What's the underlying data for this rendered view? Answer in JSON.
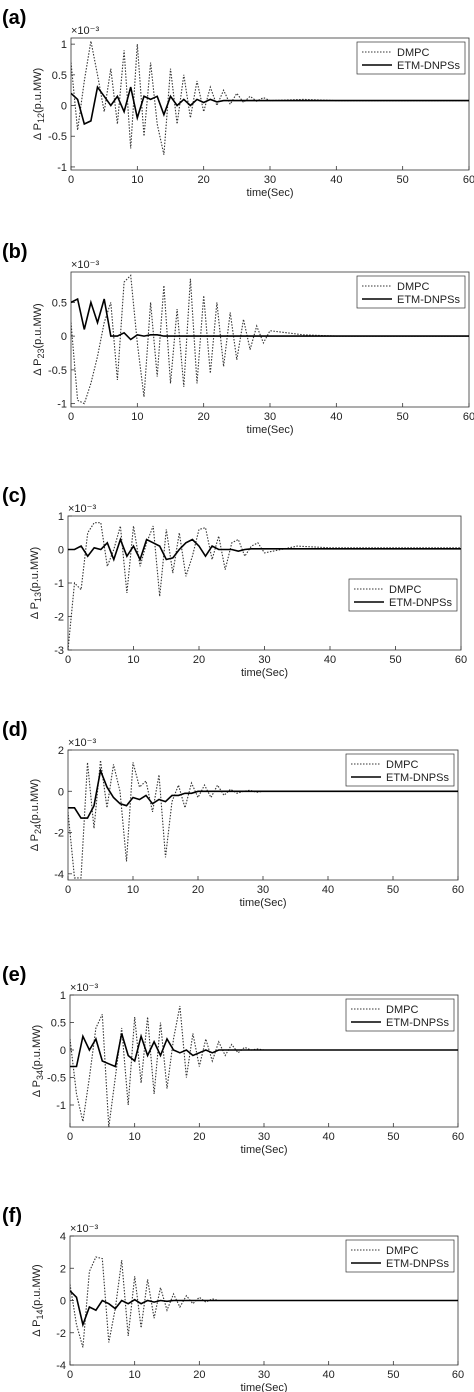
{
  "chart_data": [
    {
      "type": "line",
      "panel_label": "(a)",
      "ylabel": "Δ P",
      "ylabel_sub": "12",
      "ylabel_unit": "(p.u.MW)",
      "y_multiplier": "×10⁻³",
      "xlabel": "time(Sec)",
      "x": [
        0,
        1,
        2,
        3,
        4,
        5,
        6,
        7,
        8,
        9,
        10,
        11,
        12,
        13,
        14,
        15,
        16,
        17,
        18,
        19,
        20,
        21,
        22,
        23,
        24,
        25,
        26,
        27,
        28,
        29,
        30,
        35,
        40,
        50,
        60
      ],
      "xlim": [
        0,
        60
      ],
      "xticks": [
        0,
        10,
        20,
        30,
        40,
        50,
        60
      ],
      "ylim": [
        -1.05,
        1.1
      ],
      "yticks": [
        -1,
        -0.5,
        0,
        0.5,
        1
      ],
      "legend": "upper right",
      "series": [
        {
          "name": "DMPC",
          "color": "#333333",
          "style": "dotted",
          "values": [
            0.7,
            -0.4,
            0.4,
            1.05,
            0.5,
            -0.1,
            0.6,
            -0.3,
            0.9,
            -0.7,
            1.0,
            -0.5,
            0.7,
            -0.3,
            -0.8,
            0.6,
            -0.3,
            0.5,
            -0.2,
            0.4,
            -0.1,
            0.3,
            0,
            0.25,
            0.02,
            0.2,
            0.05,
            0.15,
            0.07,
            0.13,
            0.08,
            0.1,
            0.08,
            0.08,
            0.08
          ]
        },
        {
          "name": "ETM-DNPSs",
          "color": "#000000",
          "style": "solid",
          "values": [
            0.2,
            0.1,
            -0.3,
            -0.25,
            0.3,
            0.15,
            0,
            0.15,
            -0.1,
            0.3,
            -0.2,
            0.15,
            0.1,
            0.15,
            -0.15,
            0.15,
            0,
            0.1,
            0,
            0.1,
            0.05,
            0.1,
            0.06,
            0.08,
            0.08,
            0.08,
            0.08,
            0.08,
            0.08,
            0.08,
            0.08,
            0.08,
            0.08,
            0.08,
            0.08
          ]
        }
      ]
    },
    {
      "type": "line",
      "panel_label": "(b)",
      "ylabel": "Δ P",
      "ylabel_sub": "23",
      "ylabel_unit": "(p.u.MW)",
      "y_multiplier": "×10⁻³",
      "xlabel": "time(Sec)",
      "x": [
        0,
        1,
        2,
        3,
        4,
        5,
        6,
        7,
        8,
        9,
        10,
        11,
        12,
        13,
        14,
        15,
        16,
        17,
        18,
        19,
        20,
        21,
        22,
        23,
        24,
        25,
        26,
        27,
        28,
        29,
        30,
        35,
        40,
        50,
        60
      ],
      "xlim": [
        0,
        60
      ],
      "xticks": [
        0,
        10,
        20,
        30,
        40,
        50,
        60
      ],
      "ylim": [
        -1.05,
        0.95
      ],
      "yticks": [
        -1,
        -0.5,
        0,
        0.5
      ],
      "legend": "upper right",
      "series": [
        {
          "name": "DMPC",
          "color": "#333333",
          "style": "dotted",
          "values": [
            0.2,
            -0.95,
            -1.0,
            -0.7,
            -0.3,
            0.2,
            0.5,
            -0.65,
            0.8,
            0.9,
            -0.1,
            -0.9,
            0.5,
            -0.6,
            0.75,
            -0.7,
            0.4,
            -0.75,
            0.85,
            -0.7,
            0.6,
            -0.55,
            0.5,
            -0.45,
            0.35,
            -0.35,
            0.25,
            -0.2,
            0.15,
            -0.1,
            0.08,
            0.02,
            0,
            0,
            0
          ]
        },
        {
          "name": "ETM-DNPSs",
          "color": "#000000",
          "style": "solid",
          "values": [
            0.5,
            0.55,
            0.1,
            0.5,
            0.2,
            0.55,
            0,
            0,
            0.05,
            -0.05,
            0.02,
            0,
            0.02,
            0.02,
            0,
            0,
            0,
            0,
            0,
            0,
            0,
            0,
            0,
            0,
            0,
            0,
            0,
            0,
            0,
            0,
            0,
            0,
            0,
            0,
            0
          ]
        }
      ]
    },
    {
      "type": "line",
      "panel_label": "(c)",
      "ylabel": "Δ P",
      "ylabel_sub": "13",
      "ylabel_unit": "(p.u.MW)",
      "y_multiplier": "×10⁻³",
      "xlabel": "time(Sec)",
      "x": [
        0,
        1,
        2,
        3,
        4,
        5,
        6,
        7,
        8,
        9,
        10,
        11,
        12,
        13,
        14,
        15,
        16,
        17,
        18,
        19,
        20,
        21,
        22,
        23,
        24,
        25,
        26,
        27,
        28,
        29,
        30,
        35,
        40,
        50,
        60
      ],
      "xlim": [
        0,
        60
      ],
      "xticks": [
        0,
        10,
        20,
        30,
        40,
        50,
        60
      ],
      "ylim": [
        -3,
        1
      ],
      "yticks": [
        -3,
        -2,
        -1,
        0,
        1
      ],
      "legend": "center right",
      "series": [
        {
          "name": "DMPC",
          "color": "#333333",
          "style": "dotted",
          "values": [
            -3,
            -1,
            -1.2,
            0.5,
            0.8,
            0.8,
            -0.5,
            0,
            0.7,
            -1.3,
            0.7,
            -0.5,
            0.2,
            0.7,
            -1.4,
            0.6,
            -0.7,
            0.5,
            -0.8,
            -0.2,
            0.6,
            0.65,
            -0.3,
            0.4,
            -0.6,
            0.2,
            0.3,
            -0.2,
            0.1,
            0.2,
            -0.1,
            0.1,
            0.05,
            0.05,
            0.05
          ]
        },
        {
          "name": "ETM-DNPSs",
          "color": "#000000",
          "style": "solid",
          "values": [
            0,
            0,
            0.1,
            -0.2,
            0.05,
            0,
            0.2,
            -0.3,
            0.3,
            -0.2,
            0.1,
            -0.3,
            0.3,
            0.2,
            0.1,
            -0.3,
            -0.25,
            0,
            0.2,
            0.3,
            0.1,
            -0.2,
            0.1,
            0,
            0,
            0,
            -0.05,
            0,
            0.02,
            0.02,
            0.02,
            0.02,
            0.02,
            0.02,
            0.02
          ]
        }
      ]
    },
    {
      "type": "line",
      "panel_label": "(d)",
      "ylabel": "Δ P",
      "ylabel_sub": "24",
      "ylabel_unit": "(p.u.MW)",
      "y_multiplier": "×10⁻³",
      "xlabel": "time(Sec)",
      "x": [
        0,
        1,
        2,
        3,
        4,
        5,
        6,
        7,
        8,
        9,
        10,
        11,
        12,
        13,
        14,
        15,
        16,
        17,
        18,
        19,
        20,
        21,
        22,
        23,
        24,
        25,
        26,
        27,
        28,
        29,
        30,
        35,
        40,
        50,
        60
      ],
      "xlim": [
        0,
        60
      ],
      "xticks": [
        0,
        10,
        20,
        30,
        40,
        50,
        60
      ],
      "ylim": [
        -4.3,
        2
      ],
      "yticks": [
        -4,
        -2,
        0,
        2
      ],
      "legend": "upper right",
      "series": [
        {
          "name": "DMPC",
          "color": "#333333",
          "style": "dotted",
          "values": [
            -1,
            -4.2,
            -4.2,
            1.4,
            -1.8,
            1.5,
            -0.8,
            1.3,
            0,
            -3.4,
            1.4,
            0.2,
            0.5,
            -1,
            0.8,
            -3.2,
            -0.5,
            0.3,
            -0.8,
            0.4,
            -0.3,
            0.3,
            -0.3,
            0.3,
            -0.2,
            0.1,
            -0.1,
            0,
            0.05,
            -0.05,
            0,
            0,
            0,
            0,
            0
          ]
        },
        {
          "name": "ETM-DNPSs",
          "color": "#000000",
          "style": "solid",
          "values": [
            -0.8,
            -0.8,
            -1.3,
            -1.3,
            -0.7,
            1.0,
            0.2,
            -0.3,
            -0.6,
            -0.7,
            -0.3,
            -0.4,
            -0.2,
            -0.6,
            -0.4,
            -0.5,
            -0.2,
            -0.2,
            -0.1,
            -0.1,
            0,
            0,
            0,
            0,
            0,
            0,
            0,
            0,
            0,
            0,
            0,
            0,
            0,
            0,
            0
          ]
        }
      ]
    },
    {
      "type": "line",
      "panel_label": "(e)",
      "ylabel": "Δ P",
      "ylabel_sub": "34",
      "ylabel_unit": "(p.u.MW)",
      "y_multiplier": "×10⁻³",
      "xlabel": "time(Sec)",
      "x": [
        0,
        1,
        2,
        3,
        4,
        5,
        6,
        7,
        8,
        9,
        10,
        11,
        12,
        13,
        14,
        15,
        16,
        17,
        18,
        19,
        20,
        21,
        22,
        23,
        24,
        25,
        26,
        27,
        28,
        29,
        30,
        35,
        40,
        50,
        60
      ],
      "xlim": [
        0,
        60
      ],
      "xticks": [
        0,
        10,
        20,
        30,
        40,
        50,
        60
      ],
      "ylim": [
        -1.4,
        1
      ],
      "yticks": [
        -1,
        -0.5,
        0,
        0.5,
        1
      ],
      "legend": "upper right",
      "series": [
        {
          "name": "DMPC",
          "color": "#333333",
          "style": "dotted",
          "values": [
            0.2,
            -0.8,
            -1.3,
            -0.5,
            0.4,
            0.65,
            -1.4,
            -0.5,
            0.4,
            -1.0,
            0.6,
            -0.6,
            0.6,
            -0.8,
            0.5,
            -0.7,
            0.2,
            0.8,
            -0.5,
            0.3,
            -0.3,
            0.2,
            -0.2,
            0.15,
            -0.1,
            0.1,
            -0.05,
            0.05,
            0,
            0.02,
            0,
            0,
            0,
            0,
            0
          ]
        },
        {
          "name": "ETM-DNPSs",
          "color": "#000000",
          "style": "solid",
          "values": [
            -0.3,
            -0.3,
            0.25,
            0,
            0.2,
            -0.2,
            -0.25,
            -0.3,
            0.3,
            -0.1,
            -0.2,
            0.25,
            -0.1,
            0.15,
            -0.1,
            0.2,
            0,
            -0.05,
            0,
            -0.1,
            -0.05,
            0,
            -0.05,
            0,
            0,
            0,
            0,
            0,
            0,
            0,
            0,
            0,
            0,
            0,
            0
          ]
        }
      ]
    },
    {
      "type": "line",
      "panel_label": "(f)",
      "ylabel": "Δ P",
      "ylabel_sub": "14",
      "ylabel_unit": "(p.u.MW)",
      "y_multiplier": "×10⁻³",
      "xlabel": "time(Sec)",
      "x": [
        0,
        1,
        2,
        3,
        4,
        5,
        6,
        7,
        8,
        9,
        10,
        11,
        12,
        13,
        14,
        15,
        16,
        17,
        18,
        19,
        20,
        21,
        22,
        23,
        24,
        25,
        26,
        27,
        28,
        29,
        30,
        35,
        40,
        50,
        60
      ],
      "xlim": [
        0,
        60
      ],
      "xticks": [
        0,
        10,
        20,
        30,
        40,
        50,
        60
      ],
      "ylim": [
        -4,
        4
      ],
      "yticks": [
        -4,
        -2,
        0,
        2,
        4
      ],
      "legend": "upper right",
      "series": [
        {
          "name": "DMPC",
          "color": "#333333",
          "style": "dotted",
          "values": [
            1,
            -1.5,
            -2.9,
            1.8,
            2.7,
            2.6,
            -2.6,
            -0.5,
            2.5,
            -2.2,
            1.5,
            -1.7,
            1.3,
            -1.1,
            0.8,
            -0.6,
            0.4,
            -0.4,
            0.3,
            -0.2,
            0.2,
            -0.1,
            0.1,
            0,
            0,
            0,
            0,
            0,
            0,
            0,
            0,
            0,
            0,
            0,
            0
          ]
        },
        {
          "name": "ETM-DNPSs",
          "color": "#000000",
          "style": "solid",
          "values": [
            0.6,
            0.2,
            -1.5,
            -0.4,
            -0.6,
            0,
            -0.2,
            -0.5,
            0,
            -0.2,
            0.05,
            -0.2,
            0,
            -0.1,
            0,
            -0.05,
            0,
            0,
            0,
            0,
            0,
            0,
            0,
            0,
            0,
            0,
            0,
            0,
            0,
            0,
            0,
            0,
            0,
            0,
            0
          ]
        }
      ]
    }
  ]
}
